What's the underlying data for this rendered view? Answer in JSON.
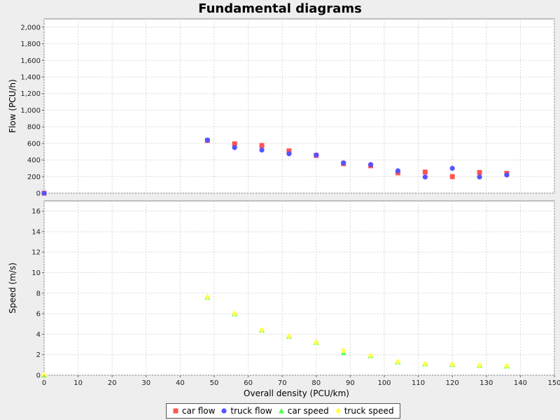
{
  "chart_data": {
    "type": "scatter",
    "title": "Fundamental diagrams",
    "xlabel": "Overall density (PCU/km)",
    "xlim": [
      0,
      150
    ],
    "xticks": [
      0,
      10,
      20,
      30,
      40,
      50,
      60,
      70,
      80,
      90,
      100,
      110,
      120,
      130,
      140,
      150
    ],
    "grid": true,
    "legend_position": "bottom",
    "subplots": [
      {
        "ylabel": "Flow (PCU/h)",
        "ylim": [
          0,
          2100
        ],
        "yticks": [
          0,
          200,
          400,
          600,
          800,
          1000,
          1200,
          1400,
          1600,
          1800,
          2000
        ],
        "ytick_labels": [
          "0",
          "200",
          "400",
          "600",
          "800",
          "1,000",
          "1,200",
          "1,400",
          "1,600",
          "1,800",
          "2,000"
        ],
        "series": [
          {
            "name": "car flow",
            "marker": "square",
            "color": "#ff5555",
            "x": [
              0,
              48,
              56,
              64,
              72,
              80,
              88,
              96,
              104,
              112,
              120,
              128,
              136
            ],
            "y": [
              0,
              635,
              595,
              575,
              510,
              455,
              355,
              330,
              245,
              255,
              200,
              250,
              240
            ]
          },
          {
            "name": "truck flow",
            "marker": "circle",
            "color": "#5555ff",
            "x": [
              0,
              48,
              56,
              64,
              72,
              80,
              88,
              96,
              104,
              112,
              120,
              128,
              136
            ],
            "y": [
              0,
              640,
              550,
              520,
              475,
              460,
              365,
              345,
              270,
              195,
              300,
              195,
              220
            ]
          }
        ]
      },
      {
        "ylabel": "Speed (m/s)",
        "ylim": [
          0,
          17
        ],
        "yticks": [
          0,
          2,
          4,
          6,
          8,
          10,
          12,
          14,
          16
        ],
        "ytick_labels": [
          "0",
          "2",
          "4",
          "6",
          "8",
          "10",
          "12",
          "14",
          "16"
        ],
        "series": [
          {
            "name": "car speed",
            "marker": "triangle",
            "color": "#55ff55",
            "x": [
              0,
              48,
              56,
              64,
              72,
              80,
              88,
              96,
              104,
              112,
              120,
              128,
              136
            ],
            "y": [
              0,
              7.6,
              6.0,
              4.4,
              3.8,
              3.2,
              2.2,
              1.9,
              1.3,
              1.1,
              1.05,
              0.95,
              0.9
            ]
          },
          {
            "name": "truck speed",
            "marker": "diamond",
            "color": "#ffff55",
            "x": [
              0,
              48,
              56,
              64,
              72,
              80,
              88,
              96,
              104,
              112,
              120,
              128,
              136
            ],
            "y": [
              0,
              7.6,
              6.0,
              4.4,
              3.8,
              3.2,
              2.4,
              1.9,
              1.3,
              1.1,
              1.05,
              0.95,
              0.9
            ]
          }
        ]
      }
    ]
  }
}
